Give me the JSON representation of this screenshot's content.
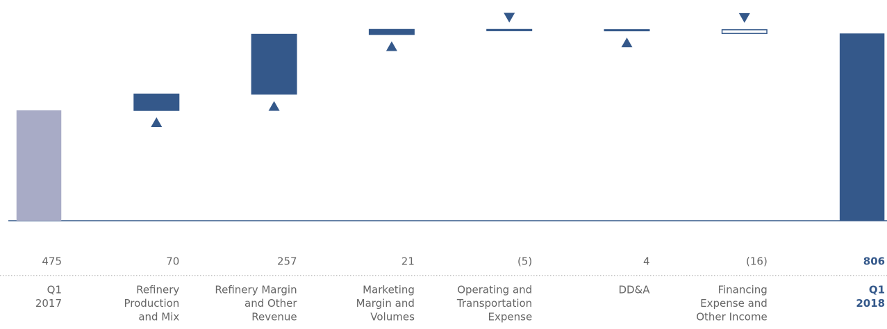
{
  "chart_data": {
    "type": "waterfall",
    "categories": [
      [
        "Q1",
        "2017"
      ],
      [
        "Refinery",
        "Production",
        "and Mix"
      ],
      [
        "Refinery Margin",
        "and Other",
        "Revenue"
      ],
      [
        "Marketing",
        "Margin and",
        "Volumes"
      ],
      [
        "Operating and",
        "Transportation",
        "Expense"
      ],
      [
        "DD&A"
      ],
      [
        "Financing",
        "Expense and",
        "Other Income"
      ],
      [
        "Q1",
        "2018"
      ]
    ],
    "values": [
      475,
      70,
      257,
      21,
      -5,
      4,
      -16,
      806
    ],
    "value_labels": [
      "475",
      "70",
      "257",
      "21",
      "(5)",
      "4",
      "(16)",
      "806"
    ],
    "colors": [
      "#a8abc6",
      "#34588a",
      "#34588a",
      "#34588a",
      "#34588a",
      "#34588a",
      "#ffffff",
      "#34588a"
    ],
    "ylim": [
      0,
      950
    ]
  }
}
